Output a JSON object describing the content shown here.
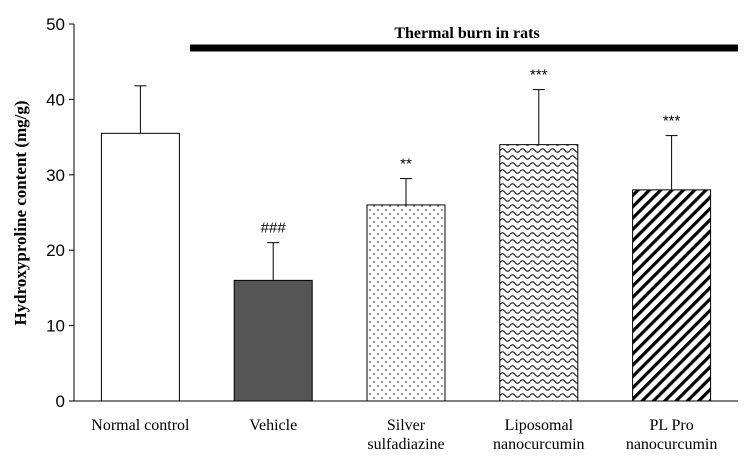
{
  "chart_data": {
    "type": "bar",
    "title": "",
    "ylabel": "Hydroxyproline content (mg/g)",
    "xlabel": "",
    "ylim": [
      0,
      50
    ],
    "yticks": [
      0,
      10,
      20,
      30,
      40,
      50
    ],
    "grid": false,
    "banner": "Thermal burn in rats",
    "categories": [
      [
        "Normal control"
      ],
      [
        "Vehicle"
      ],
      [
        "Silver",
        "sulfadiazine"
      ],
      [
        "Liposomal",
        "nanocurcumin"
      ],
      [
        "PL Pro",
        "nanocurcumin"
      ]
    ],
    "values": [
      35.5,
      16,
      26,
      34,
      28
    ],
    "errors": [
      6.3,
      5,
      3.5,
      7.3,
      7.2
    ],
    "significance": [
      "",
      "###",
      "**",
      "***",
      "***"
    ],
    "fills": [
      "white",
      "#555555",
      "dots",
      "waves",
      "diagonal"
    ]
  }
}
